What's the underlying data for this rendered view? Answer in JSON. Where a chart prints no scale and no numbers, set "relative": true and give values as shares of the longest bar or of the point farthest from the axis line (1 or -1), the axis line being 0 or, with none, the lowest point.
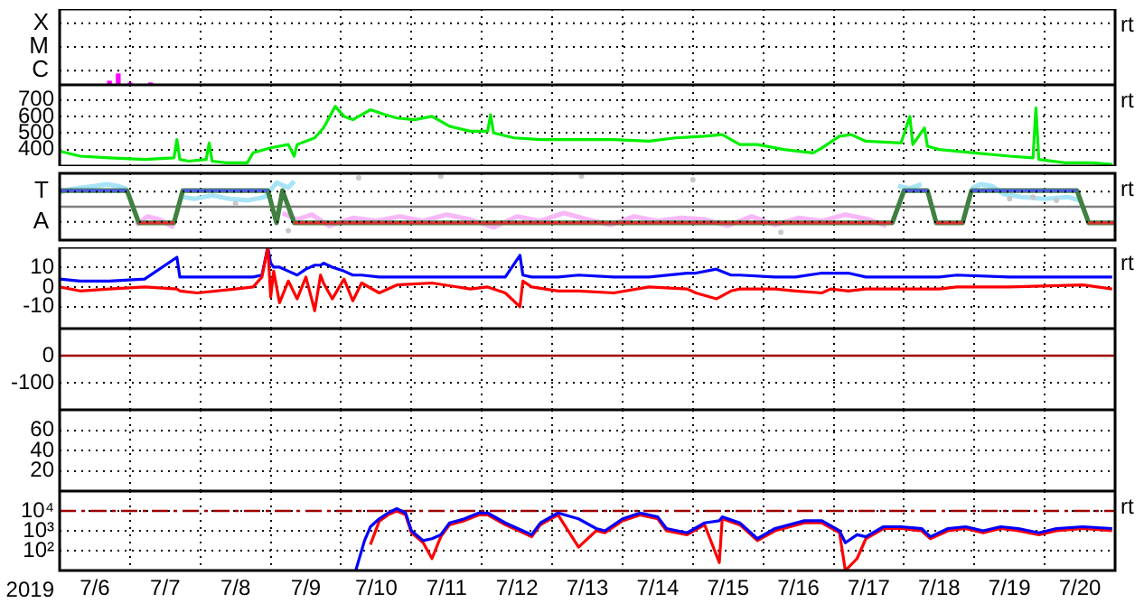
{
  "chart_data": [
    {
      "type": "bar",
      "relative": true,
      "grid": true,
      "tick_labels": "y",
      "xlim": [
        "2019-07-06",
        "2019-07-21"
      ],
      "xticks": [
        {
          "value": "2019-07-07",
          "label": null
        },
        {
          "value": "2019-07-08",
          "label": null
        },
        {
          "value": "2019-07-09",
          "label": null
        },
        {
          "value": "2019-07-10",
          "label": null
        },
        {
          "value": "2019-07-11",
          "label": null
        },
        {
          "value": "2019-07-12",
          "label": null
        },
        {
          "value": "2019-07-13",
          "label": null
        },
        {
          "value": "2019-07-14",
          "label": null
        },
        {
          "value": "2019-07-15",
          "label": null
        },
        {
          "value": "2019-07-16",
          "label": null
        },
        {
          "value": "2019-07-17",
          "label": null
        },
        {
          "value": "2019-07-18",
          "label": null
        },
        {
          "value": "2019-07-19",
          "label": null
        },
        {
          "value": "2019-07-20",
          "label": null
        }
      ],
      "annotations": [
        "rt",
        "X",
        "M",
        "C"
      ],
      "series": [
        {
          "color": "#ff00ff",
          "x": [
            "2019-07-06T17:00",
            "2019-07-06T20:00",
            "2019-07-07T00:00",
            "2019-07-07T07:00"
          ],
          "values": [
            0.33,
            1,
            0.17,
            0.17
          ]
        }
      ]
    },
    {
      "type": "line",
      "grid": true,
      "tick_labels": "y",
      "xlim": [
        "2019-07-06",
        "2019-07-21"
      ],
      "ylim": [
        300,
        790
      ],
      "xticks": [
        {
          "value": "2019-07-07",
          "label": null
        },
        {
          "value": "2019-07-08",
          "label": null
        },
        {
          "value": "2019-07-09",
          "label": null
        },
        {
          "value": "2019-07-10",
          "label": null
        },
        {
          "value": "2019-07-11",
          "label": null
        },
        {
          "value": "2019-07-12",
          "label": null
        },
        {
          "value": "2019-07-13",
          "label": null
        },
        {
          "value": "2019-07-14",
          "label": null
        },
        {
          "value": "2019-07-15",
          "label": null
        },
        {
          "value": "2019-07-16",
          "label": null
        },
        {
          "value": "2019-07-17",
          "label": null
        },
        {
          "value": "2019-07-18",
          "label": null
        },
        {
          "value": "2019-07-19",
          "label": null
        },
        {
          "value": "2019-07-20",
          "label": null
        }
      ],
      "yticks": [
        400,
        500,
        600,
        700
      ],
      "annotations": [
        "rt"
      ],
      "series": [
        {
          "color": "#00ee00",
          "x": [
            "2019-07-06T00:00",
            "2019-07-06T07:00",
            "2019-07-06T17:00",
            "2019-07-07T05:00",
            "2019-07-07T15:00",
            "2019-07-07T16:00",
            "2019-07-07T17:00",
            "2019-07-07T20:00",
            "2019-07-08T02:00",
            "2019-07-08T03:00",
            "2019-07-08T04:00",
            "2019-07-08T09:00",
            "2019-07-08T16:00",
            "2019-07-08T18:00",
            "2019-07-09T00:00",
            "2019-07-09T06:00",
            "2019-07-09T08:00",
            "2019-07-09T09:00",
            "2019-07-09T15:00",
            "2019-07-09T18:00",
            "2019-07-09T22:00",
            "2019-07-10T01:00",
            "2019-07-10T04:00",
            "2019-07-10T10:00",
            "2019-07-10T15:00",
            "2019-07-10T19:00",
            "2019-07-11T01:00",
            "2019-07-11T07:00",
            "2019-07-11T13:00",
            "2019-07-11T20:00",
            "2019-07-12T02:00",
            "2019-07-12T03:00",
            "2019-07-12T04:00",
            "2019-07-12T11:00",
            "2019-07-12T20:00",
            "2019-07-13T09:00",
            "2019-07-13T21:00",
            "2019-07-14T09:00",
            "2019-07-14T18:00",
            "2019-07-15T04:00",
            "2019-07-15T10:00",
            "2019-07-15T16:00",
            "2019-07-15T22:00",
            "2019-07-16T07:00",
            "2019-07-16T17:00",
            "2019-07-16T20:00",
            "2019-07-17T02:00",
            "2019-07-17T06:00",
            "2019-07-17T11:00",
            "2019-07-17T23:00",
            "2019-07-18T02:00",
            "2019-07-18T03:00",
            "2019-07-18T07:00",
            "2019-07-18T08:00",
            "2019-07-18T12:00",
            "2019-07-19T00:00",
            "2019-07-19T12:00",
            "2019-07-19T20:00",
            "2019-07-19T21:00",
            "2019-07-19T22:00",
            "2019-07-20T07:00",
            "2019-07-20T16:00",
            "2019-07-20T23:00"
          ],
          "values": [
            390,
            360,
            350,
            340,
            350,
            460,
            340,
            330,
            340,
            440,
            330,
            320,
            320,
            380,
            410,
            430,
            360,
            430,
            470,
            530,
            660,
            600,
            580,
            640,
            610,
            590,
            580,
            600,
            540,
            510,
            510,
            610,
            500,
            470,
            460,
            460,
            460,
            450,
            470,
            480,
            490,
            430,
            430,
            400,
            380,
            410,
            480,
            490,
            450,
            440,
            600,
            430,
            530,
            420,
            400,
            380,
            360,
            350,
            650,
            340,
            320,
            320,
            310
          ]
        }
      ]
    },
    {
      "type": "line",
      "relative": true,
      "grid": true,
      "tick_labels": "y",
      "xlim": [
        "2019-07-06",
        "2019-07-21"
      ],
      "xticks": [
        {
          "value": "2019-07-07",
          "label": null
        },
        {
          "value": "2019-07-08",
          "label": null
        },
        {
          "value": "2019-07-09",
          "label": null
        },
        {
          "value": "2019-07-10",
          "label": null
        },
        {
          "value": "2019-07-11",
          "label": null
        },
        {
          "value": "2019-07-12",
          "label": null
        },
        {
          "value": "2019-07-13",
          "label": null
        },
        {
          "value": "2019-07-14",
          "label": null
        },
        {
          "value": "2019-07-15",
          "label": null
        },
        {
          "value": "2019-07-16",
          "label": null
        },
        {
          "value": "2019-07-17",
          "label": null
        },
        {
          "value": "2019-07-18",
          "label": null
        },
        {
          "value": "2019-07-19",
          "label": null
        },
        {
          "value": "2019-07-20",
          "label": null
        }
      ],
      "ref_lines": [
        {
          "axis": "y",
          "value": 0,
          "label": null,
          "color": "#808080"
        }
      ],
      "annotations": [
        "rt",
        "T",
        "A"
      ],
      "series": [
        {
          "color": "#a8e4f8",
          "x": [
            "2019-07-06T00:00",
            "2019-07-06T04:00",
            "2019-07-06T08:00",
            "2019-07-06T12:00",
            "2019-07-06T16:00",
            "2019-07-06T20:00",
            "2019-07-06T23:00",
            "2019-07-07T08:00",
            "2019-07-07T18:00",
            "2019-07-07T22:00",
            "2019-07-08T04:00",
            "2019-07-08T10:00",
            "2019-07-08T16:00",
            "2019-07-08T22:00",
            "2019-07-09T02:00",
            "2019-07-09T06:00",
            "2019-07-09T08:00",
            "2019-07-12T00:00",
            "2019-07-17T22:00",
            "2019-07-18T02:00",
            "2019-07-18T06:00",
            "2019-07-18T14:00",
            "2019-07-18T23:00",
            "2019-07-19T02:00",
            "2019-07-19T06:00",
            "2019-07-19T10:00",
            "2019-07-19T16:00",
            "2019-07-20T00:00",
            "2019-07-20T08:00",
            "2019-07-20T12:00"
          ],
          "values": [
            0.47,
            0.58,
            0.63,
            0.68,
            0.74,
            0.68,
            0.58,
            null,
            0.32,
            0.26,
            0.37,
            0.26,
            0.21,
            0.32,
            0.79,
            0.63,
            0.84,
            null,
            0.68,
            0.6,
            0.74,
            null,
            0.6,
            0.74,
            0.68,
            0.42,
            0.32,
            0.26,
            0.32,
            0.21
          ]
        },
        {
          "color": "#f8b8f8",
          "x": [
            "2019-07-07T02:00",
            "2019-07-07T06:00",
            "2019-07-07T10:00",
            "2019-07-07T15:00",
            "2019-07-08T00:00",
            "2019-07-09T04:00",
            "2019-07-09T09:00",
            "2019-07-09T14:00",
            "2019-07-09T20:00",
            "2019-07-10T04:00",
            "2019-07-10T12:00",
            "2019-07-10T20:00",
            "2019-07-11T04:00",
            "2019-07-11T12:00",
            "2019-07-11T20:00",
            "2019-07-12T04:00",
            "2019-07-12T12:00",
            "2019-07-12T20:00",
            "2019-07-13T04:00",
            "2019-07-13T12:00",
            "2019-07-13T20:00",
            "2019-07-14T04:00",
            "2019-07-14T12:00",
            "2019-07-14T20:00",
            "2019-07-15T04:00",
            "2019-07-15T12:00",
            "2019-07-15T20:00",
            "2019-07-16T04:00",
            "2019-07-16T12:00",
            "2019-07-16T20:00",
            "2019-07-17T04:00",
            "2019-07-17T12:00",
            "2019-07-17T18:00"
          ],
          "values": [
            -0.6,
            -0.32,
            -0.42,
            -0.68,
            null,
            -0.21,
            -0.42,
            -0.26,
            -0.63,
            -0.37,
            -0.47,
            -0.32,
            -0.47,
            -0.26,
            -0.42,
            -0.68,
            -0.32,
            -0.47,
            -0.21,
            -0.42,
            -0.6,
            -0.32,
            -0.47,
            -0.37,
            -0.42,
            -0.63,
            -0.32,
            -0.6,
            -0.37,
            -0.47,
            -0.26,
            -0.42,
            -0.63
          ]
        },
        {
          "type": "scatter",
          "color": "#c8c8c8",
          "x": [
            "2019-07-08T12:00",
            "2019-07-09T06:00",
            "2019-07-10T06:00",
            "2019-07-11T10:00",
            "2019-07-13T10:00",
            "2019-07-15T00:00",
            "2019-07-16T06:00",
            "2019-07-19T12:00",
            "2019-07-19T20:00",
            "2019-07-20T04:00"
          ],
          "values": [
            0.11,
            -0.79,
            0.95,
            1,
            1,
            0.89,
            -0.84,
            0.26,
            0.32,
            0.21
          ]
        },
        {
          "color": "#408040",
          "x": [
            "2019-07-06T00:00",
            "2019-07-06T23:00",
            "2019-07-07T03:00",
            "2019-07-07T15:00",
            "2019-07-07T18:00",
            "2019-07-08T23:00",
            "2019-07-09T02:00",
            "2019-07-09T04:00",
            "2019-07-09T08:00",
            "2019-07-17T20:00",
            "2019-07-18T00:00",
            "2019-07-18T08:00",
            "2019-07-18T11:00",
            "2019-07-18T20:00",
            "2019-07-18T23:00",
            "2019-07-20T11:00",
            "2019-07-20T15:00",
            "2019-07-21T00:00"
          ],
          "values": [
            0.53,
            0.53,
            -0.53,
            -0.53,
            0.53,
            0.53,
            -0.53,
            0.53,
            -0.53,
            -0.53,
            0.53,
            0.53,
            -0.53,
            -0.53,
            0.53,
            0.53,
            -0.53,
            -0.53
          ]
        },
        {
          "color": "#4a5ae8",
          "x": [
            "2019-07-06T00:00",
            "2019-07-06T23:00",
            "2019-07-07T03:00",
            "2019-07-07T18:00",
            "2019-07-08T23:00",
            "2019-07-09T08:00",
            "2019-07-18T00:00",
            "2019-07-18T08:00",
            "2019-07-18T11:00",
            "2019-07-18T23:00",
            "2019-07-20T11:00"
          ],
          "values": [
            0.53,
            0.53,
            null,
            0.53,
            0.53,
            null,
            0.53,
            0.53,
            null,
            0.53,
            0.53
          ]
        },
        {
          "color": "#e03030",
          "x": [
            "2019-07-07T03:00",
            "2019-07-07T15:00",
            "2019-07-07T18:00",
            "2019-07-09T08:00",
            "2019-07-17T20:00",
            "2019-07-18T00:00",
            "2019-07-18T11:00",
            "2019-07-18T20:00",
            "2019-07-18T23:00",
            "2019-07-20T15:00",
            "2019-07-21T00:00"
          ],
          "values": [
            -0.53,
            -0.53,
            null,
            -0.53,
            -0.53,
            null,
            -0.53,
            -0.53,
            null,
            -0.53,
            -0.53
          ]
        }
      ]
    },
    {
      "type": "line",
      "grid": true,
      "tick_labels": "y",
      "xlim": [
        "2019-07-06",
        "2019-07-21"
      ],
      "ylim": [
        -21,
        20
      ],
      "xticks": [
        {
          "value": "2019-07-07",
          "label": null
        },
        {
          "value": "2019-07-08",
          "label": null
        },
        {
          "value": "2019-07-09",
          "label": null
        },
        {
          "value": "2019-07-10",
          "label": null
        },
        {
          "value": "2019-07-11",
          "label": null
        },
        {
          "value": "2019-07-12",
          "label": null
        },
        {
          "value": "2019-07-13",
          "label": null
        },
        {
          "value": "2019-07-14",
          "label": null
        },
        {
          "value": "2019-07-15",
          "label": null
        },
        {
          "value": "2019-07-16",
          "label": null
        },
        {
          "value": "2019-07-17",
          "label": null
        },
        {
          "value": "2019-07-18",
          "label": null
        },
        {
          "value": "2019-07-19",
          "label": null
        },
        {
          "value": "2019-07-20",
          "label": null
        }
      ],
      "yticks": [
        -10,
        0,
        10
      ],
      "annotations": [
        "rt"
      ],
      "x": [
        "2019-07-06T00:00",
        "2019-07-06T07:00",
        "2019-07-06T17:00",
        "2019-07-07T05:00",
        "2019-07-07T16:00",
        "2019-07-07T17:00",
        "2019-07-07T23:00",
        "2019-07-08T12:00",
        "2019-07-08T18:00",
        "2019-07-08T21:00",
        "2019-07-08T23:00",
        "2019-07-09T00:00",
        "2019-07-09T01:00",
        "2019-07-09T03:00",
        "2019-07-09T06:00",
        "2019-07-09T09:00",
        "2019-07-09T12:00",
        "2019-07-09T15:00",
        "2019-07-09T17:00",
        "2019-07-09T18:00",
        "2019-07-09T21:00",
        "2019-07-10T01:00",
        "2019-07-10T04:00",
        "2019-07-10T07:00",
        "2019-07-10T13:00",
        "2019-07-10T19:00",
        "2019-07-11T07:00",
        "2019-07-11T20:00",
        "2019-07-12T02:00",
        "2019-07-12T08:00",
        "2019-07-12T13:00",
        "2019-07-12T14:00",
        "2019-07-12T17:00",
        "2019-07-13T02:00",
        "2019-07-13T09:00",
        "2019-07-13T21:00",
        "2019-07-14T09:00",
        "2019-07-14T22:00",
        "2019-07-15T01:00",
        "2019-07-15T08:00",
        "2019-07-15T13:00",
        "2019-07-15T16:00",
        "2019-07-16T04:00",
        "2019-07-16T11:00",
        "2019-07-16T20:00",
        "2019-07-16T23:00",
        "2019-07-17T05:00",
        "2019-07-17T11:00",
        "2019-07-18T12:00",
        "2019-07-18T18:00",
        "2019-07-19T12:00",
        "2019-07-20T13:00",
        "2019-07-20T23:00"
      ],
      "series": [
        {
          "color": "#0000ff",
          "values": [
            4,
            3,
            3,
            4,
            15,
            5,
            5,
            5,
            5,
            6,
            20,
            12,
            10,
            10,
            8,
            6,
            9,
            11,
            11,
            12,
            10,
            8,
            6,
            6,
            5,
            5,
            5,
            5,
            5,
            5,
            16,
            6,
            5,
            5,
            6,
            5,
            5,
            7,
            7,
            9,
            6,
            6,
            5,
            5,
            7,
            7,
            7,
            5,
            5,
            6,
            5,
            5,
            5
          ]
        },
        {
          "color": "#ff0000",
          "values": [
            0,
            -2,
            -1,
            0,
            -1,
            -2,
            -3,
            -1,
            0,
            5,
            20,
            -5,
            8,
            -8,
            3,
            -6,
            5,
            -12,
            6,
            2,
            -6,
            4,
            -7,
            2,
            -3,
            1,
            2,
            -1,
            0,
            -3,
            -10,
            3,
            0,
            -2,
            -2,
            -3,
            0,
            -1,
            -3,
            -6,
            -2,
            -1,
            -1,
            -2,
            -3,
            -1,
            -2,
            -1,
            -1,
            0,
            0,
            1,
            -1
          ]
        }
      ]
    },
    {
      "type": "line",
      "grid": true,
      "tick_labels": "y",
      "xlim": [
        "2019-07-06",
        "2019-07-21"
      ],
      "ylim": [
        -200,
        100
      ],
      "xticks": [
        {
          "value": "2019-07-07",
          "label": null
        },
        {
          "value": "2019-07-08",
          "label": null
        },
        {
          "value": "2019-07-09",
          "label": null
        },
        {
          "value": "2019-07-10",
          "label": null
        },
        {
          "value": "2019-07-11",
          "label": null
        },
        {
          "value": "2019-07-12",
          "label": null
        },
        {
          "value": "2019-07-13",
          "label": null
        },
        {
          "value": "2019-07-14",
          "label": null
        },
        {
          "value": "2019-07-15",
          "label": null
        },
        {
          "value": "2019-07-16",
          "label": null
        },
        {
          "value": "2019-07-17",
          "label": null
        },
        {
          "value": "2019-07-18",
          "label": null
        },
        {
          "value": "2019-07-19",
          "label": null
        },
        {
          "value": "2019-07-20",
          "label": null
        }
      ],
      "yticks": [
        -100,
        0
      ],
      "ref_lines": [
        {
          "axis": "y",
          "value": 0,
          "label": null,
          "color": "#a00000"
        }
      ]
    },
    {
      "type": "line",
      "grid": true,
      "tick_labels": "y",
      "xlim": [
        "2019-07-06",
        "2019-07-21"
      ],
      "ylim": [
        0,
        80
      ],
      "xticks": [
        {
          "value": "2019-07-07",
          "label": null
        },
        {
          "value": "2019-07-08",
          "label": null
        },
        {
          "value": "2019-07-09",
          "label": null
        },
        {
          "value": "2019-07-10",
          "label": null
        },
        {
          "value": "2019-07-11",
          "label": null
        },
        {
          "value": "2019-07-12",
          "label": null
        },
        {
          "value": "2019-07-13",
          "label": null
        },
        {
          "value": "2019-07-14",
          "label": null
        },
        {
          "value": "2019-07-15",
          "label": null
        },
        {
          "value": "2019-07-16",
          "label": null
        },
        {
          "value": "2019-07-17",
          "label": null
        },
        {
          "value": "2019-07-18",
          "label": null
        },
        {
          "value": "2019-07-19",
          "label": null
        },
        {
          "value": "2019-07-20",
          "label": null
        }
      ],
      "yticks": [
        20,
        40,
        60
      ]
    },
    {
      "type": "line",
      "log": true,
      "grid": true,
      "xlabel": "2019",
      "xlim": [
        "2019-07-06",
        "2019-07-21"
      ],
      "ylim": [
        10,
        100000
      ],
      "xticks": [
        {
          "value": "2019-07-06T12:00",
          "label": "7/6"
        },
        {
          "value": "2019-07-07",
          "label": null
        },
        {
          "value": "2019-07-07T12:00",
          "label": "7/7"
        },
        {
          "value": "2019-07-08",
          "label": null
        },
        {
          "value": "2019-07-08T12:00",
          "label": "7/8"
        },
        {
          "value": "2019-07-09",
          "label": null
        },
        {
          "value": "2019-07-09T12:00",
          "label": "7/9"
        },
        {
          "value": "2019-07-10",
          "label": null
        },
        {
          "value": "2019-07-10T12:00",
          "label": "7/10"
        },
        {
          "value": "2019-07-11",
          "label": null
        },
        {
          "value": "2019-07-11T12:00",
          "label": "7/11"
        },
        {
          "value": "2019-07-12",
          "label": null
        },
        {
          "value": "2019-07-12T12:00",
          "label": "7/12"
        },
        {
          "value": "2019-07-13",
          "label": null
        },
        {
          "value": "2019-07-13T12:00",
          "label": "7/13"
        },
        {
          "value": "2019-07-14",
          "label": null
        },
        {
          "value": "2019-07-14T12:00",
          "label": "7/14"
        },
        {
          "value": "2019-07-15",
          "label": null
        },
        {
          "value": "2019-07-15T12:00",
          "label": "7/15"
        },
        {
          "value": "2019-07-16",
          "label": null
        },
        {
          "value": "2019-07-16T12:00",
          "label": "7/16"
        },
        {
          "value": "2019-07-17",
          "label": null
        },
        {
          "value": "2019-07-17T12:00",
          "label": "7/17"
        },
        {
          "value": "2019-07-18",
          "label": null
        },
        {
          "value": "2019-07-18T12:00",
          "label": "7/18"
        },
        {
          "value": "2019-07-19",
          "label": null
        },
        {
          "value": "2019-07-19T12:00",
          "label": "7/19"
        },
        {
          "value": "2019-07-20",
          "label": null
        },
        {
          "value": "2019-07-20T12:00",
          "label": "7/20"
        }
      ],
      "yticks": [
        {
          "value": 100,
          "label": "10²"
        },
        {
          "value": 1000,
          "label": "10³"
        },
        {
          "value": 10000,
          "label": "10⁴"
        }
      ],
      "ref_lines": [
        {
          "axis": "y",
          "value": 10000,
          "label": null,
          "color": "#a00000",
          "line_style": "dashed"
        }
      ],
      "annotations": [
        "rt"
      ],
      "x": [
        "2019-07-10T05:00",
        "2019-07-10T08:00",
        "2019-07-10T10:00",
        "2019-07-10T13:00",
        "2019-07-10T16:00",
        "2019-07-10T19:00",
        "2019-07-10T22:00",
        "2019-07-11T00:00",
        "2019-07-11T04:00",
        "2019-07-11T07:00",
        "2019-07-11T10:00",
        "2019-07-11T13:00",
        "2019-07-11T18:00",
        "2019-07-11T23:00",
        "2019-07-12T02:00",
        "2019-07-12T08:00",
        "2019-07-12T14:00",
        "2019-07-12T17:00",
        "2019-07-12T20:00",
        "2019-07-13T02:00",
        "2019-07-13T09:00",
        "2019-07-13T15:00",
        "2019-07-13T18:00",
        "2019-07-14T00:00",
        "2019-07-14T06:00",
        "2019-07-14T12:00",
        "2019-07-14T15:00",
        "2019-07-14T22:00",
        "2019-07-15T04:00",
        "2019-07-15T09:00",
        "2019-07-15T10:00",
        "2019-07-15T16:00",
        "2019-07-15T22:00",
        "2019-07-16T04:00",
        "2019-07-16T14:00",
        "2019-07-16T20:00",
        "2019-07-17T02:00",
        "2019-07-17T04:00",
        "2019-07-17T08:00",
        "2019-07-17T11:00",
        "2019-07-17T17:00",
        "2019-07-17T23:00",
        "2019-07-18T06:00",
        "2019-07-18T09:00",
        "2019-07-18T15:00",
        "2019-07-18T21:00",
        "2019-07-19T03:00",
        "2019-07-19T09:00",
        "2019-07-19T15:00",
        "2019-07-19T22:00",
        "2019-07-20T04:00",
        "2019-07-20T13:00",
        "2019-07-20T23:00"
      ],
      "series": [
        {
          "color": "#ff0000",
          "values": [
            null,
            null,
            200,
            3000,
            6300,
            10000,
            6300,
            800,
            250,
            40,
            500,
            2000,
            3200,
            6300,
            6300,
            2000,
            800,
            500,
            2000,
            6300,
            150,
            1000,
            800,
            3200,
            6300,
            4000,
            1000,
            630,
            2000,
            25,
            4000,
            2000,
            320,
            1000,
            2500,
            2500,
            800,
            10,
            40,
            400,
            1300,
            1300,
            1000,
            400,
            1000,
            1300,
            800,
            1300,
            1000,
            630,
            1000,
            1300,
            1000
          ]
        },
        {
          "color": "#0000ff",
          "values": [
            10,
            320,
            1600,
            4000,
            7900,
            13000,
            7900,
            1000,
            320,
            400,
            630,
            2500,
            4000,
            7900,
            7900,
            2500,
            1000,
            630,
            2500,
            7900,
            4000,
            1300,
            1000,
            4000,
            7900,
            5000,
            1300,
            790,
            2500,
            3200,
            5000,
            2500,
            400,
            1300,
            3200,
            3200,
            1000,
            250,
            630,
            500,
            1600,
            1600,
            1300,
            500,
            1300,
            1600,
            1000,
            1600,
            1300,
            790,
            1300,
            1600,
            1300
          ]
        }
      ]
    }
  ]
}
